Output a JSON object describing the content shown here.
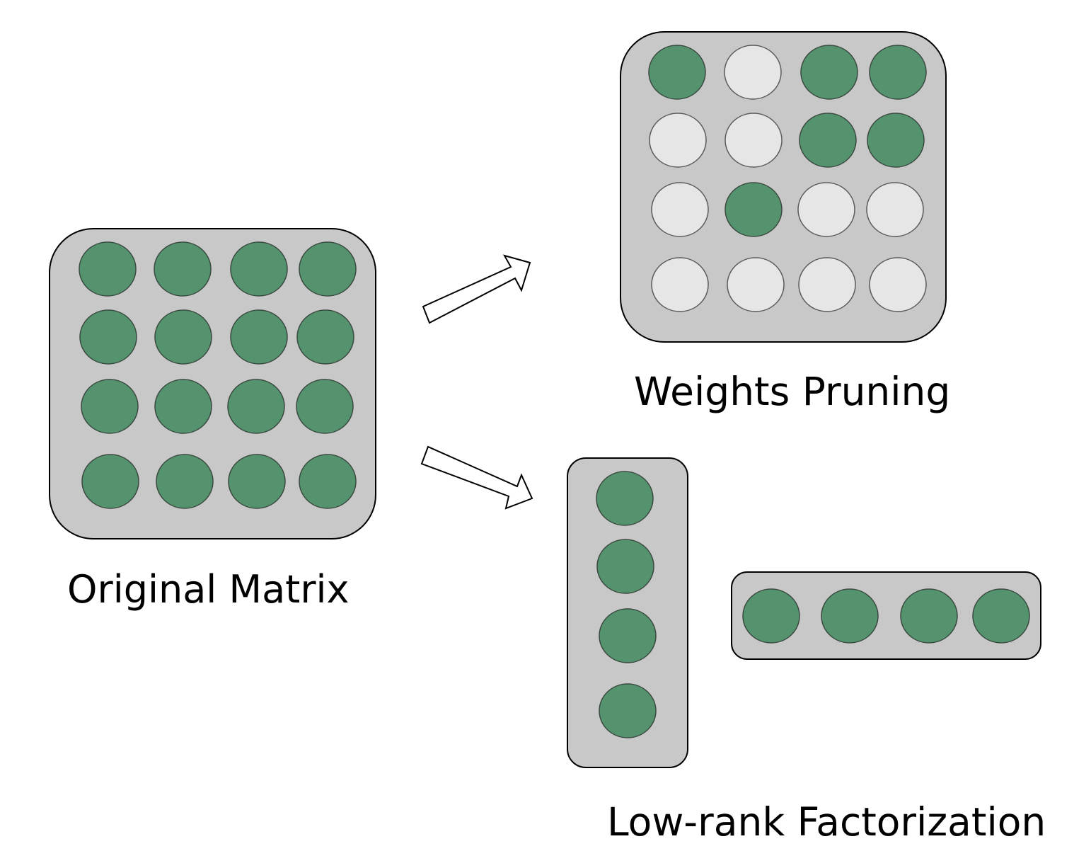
{
  "colors": {
    "background": "#ffffff",
    "panel_fill": "#c8c8c8",
    "panel_stroke": "#000000",
    "active_weight": "#54936d",
    "active_weight_stroke": "#3a4a40",
    "pruned_weight": "#e6e6e6",
    "pruned_weight_stroke": "#5a5a5a",
    "arrow_fill": "#ffffff",
    "arrow_stroke": "#000000"
  },
  "labels": {
    "original": "Original Matrix",
    "pruning": "Weights Pruning",
    "lowrank": "Low-rank Factorization"
  },
  "original_matrix": {
    "rows": 4,
    "cols": 4,
    "cells": [
      [
        1,
        1,
        1,
        1
      ],
      [
        1,
        1,
        1,
        1
      ],
      [
        1,
        1,
        1,
        1
      ],
      [
        1,
        1,
        1,
        1
      ]
    ]
  },
  "pruned_matrix": {
    "rows": 4,
    "cols": 4,
    "cells": [
      [
        1,
        0,
        1,
        1
      ],
      [
        0,
        0,
        1,
        1
      ],
      [
        0,
        1,
        0,
        0
      ],
      [
        0,
        0,
        0,
        0
      ]
    ]
  },
  "lowrank": {
    "column_vector": {
      "count": 4
    },
    "row_vector": {
      "count": 4
    }
  },
  "icons": [
    "arrow-to-pruning-icon",
    "arrow-to-lowrank-icon"
  ]
}
